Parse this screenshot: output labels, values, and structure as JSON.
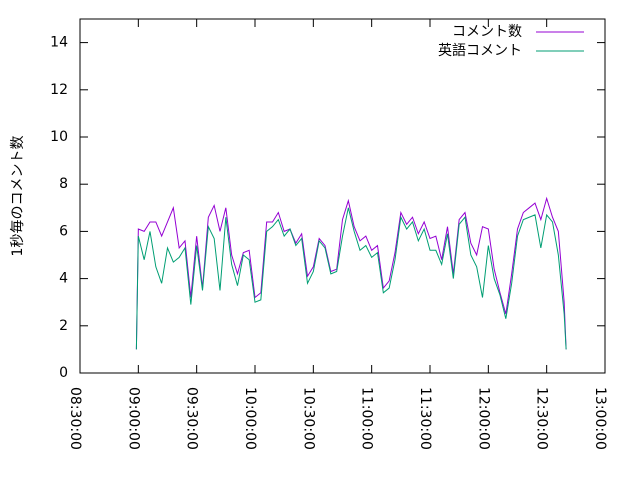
{
  "chart_data": {
    "type": "line",
    "ylabel": "1秒毎のコメント数",
    "xlim": [
      "08:30:00",
      "13:00:00"
    ],
    "xticks": [
      "08:30:00",
      "09:00:00",
      "09:30:00",
      "10:00:00",
      "10:30:00",
      "11:00:00",
      "11:30:00",
      "12:00:00",
      "12:30:00",
      "13:00:00"
    ],
    "ylim": [
      0,
      15
    ],
    "yticks": [
      0,
      2,
      4,
      6,
      8,
      10,
      12,
      14
    ],
    "legend": "top-right",
    "x": [
      "08:59:00",
      "09:00:00",
      "09:03:00",
      "09:06:00",
      "09:09:00",
      "09:12:00",
      "09:15:00",
      "09:18:00",
      "09:21:00",
      "09:24:00",
      "09:27:00",
      "09:30:00",
      "09:33:00",
      "09:36:00",
      "09:39:00",
      "09:42:00",
      "09:45:00",
      "09:48:00",
      "09:51:00",
      "09:54:00",
      "09:57:00",
      "10:00:00",
      "10:03:00",
      "10:06:00",
      "10:09:00",
      "10:12:00",
      "10:15:00",
      "10:18:00",
      "10:21:00",
      "10:24:00",
      "10:27:00",
      "10:30:00",
      "10:33:00",
      "10:36:00",
      "10:39:00",
      "10:42:00",
      "10:45:00",
      "10:48:00",
      "10:51:00",
      "10:54:00",
      "10:57:00",
      "11:00:00",
      "11:03:00",
      "11:06:00",
      "11:09:00",
      "11:12:00",
      "11:15:00",
      "11:18:00",
      "11:21:00",
      "11:24:00",
      "11:27:00",
      "11:30:00",
      "11:33:00",
      "11:36:00",
      "11:39:00",
      "11:42:00",
      "11:45:00",
      "11:48:00",
      "11:51:00",
      "11:54:00",
      "11:57:00",
      "12:00:00",
      "12:03:00",
      "12:06:00",
      "12:09:00",
      "12:12:00",
      "12:15:00",
      "12:18:00",
      "12:21:00",
      "12:24:00",
      "12:27:00",
      "12:30:00",
      "12:33:00",
      "12:36:00",
      "12:39:00",
      "12:40:00"
    ],
    "series": [
      {
        "name": "コメント数",
        "color": "#9400d3",
        "values": [
          1,
          6.1,
          6.0,
          6.4,
          6.4,
          5.8,
          6.4,
          7.0,
          5.3,
          5.6,
          3.2,
          5.8,
          3.6,
          6.6,
          7.1,
          6.0,
          7.0,
          5.0,
          4.2,
          5.1,
          5.2,
          3.2,
          3.4,
          6.4,
          6.4,
          6.8,
          6.0,
          6.1,
          5.5,
          5.9,
          4.1,
          4.5,
          5.7,
          5.4,
          4.3,
          4.4,
          6.5,
          7.3,
          6.2,
          5.6,
          5.8,
          5.2,
          5.4,
          3.6,
          3.9,
          5.1,
          6.8,
          6.3,
          6.6,
          5.9,
          6.4,
          5.7,
          5.8,
          4.8,
          6.2,
          4.2,
          6.5,
          6.8,
          5.5,
          5.0,
          6.2,
          6.1,
          4.4,
          3.4,
          2.5,
          4.2,
          6.1,
          6.8,
          7.0,
          7.2,
          6.5,
          7.4,
          6.6,
          6.0,
          3.0,
          1
        ]
      },
      {
        "name": "英語コメント",
        "color": "#009e73",
        "values": [
          1,
          5.8,
          4.8,
          6.0,
          4.5,
          3.8,
          5.3,
          4.7,
          4.9,
          5.3,
          2.9,
          5.4,
          3.5,
          6.2,
          5.7,
          3.5,
          6.6,
          4.6,
          3.7,
          5.0,
          4.8,
          3.0,
          3.1,
          6.0,
          6.2,
          6.5,
          5.8,
          6.1,
          5.4,
          5.7,
          3.8,
          4.3,
          5.6,
          5.3,
          4.2,
          4.3,
          5.8,
          7.0,
          6.0,
          5.2,
          5.4,
          4.9,
          5.1,
          3.4,
          3.6,
          4.8,
          6.6,
          6.1,
          6.4,
          5.6,
          6.1,
          5.2,
          5.2,
          4.6,
          5.9,
          4.0,
          6.3,
          6.6,
          5.0,
          4.5,
          3.2,
          5.4,
          4.0,
          3.3,
          2.3,
          3.8,
          5.8,
          6.5,
          6.6,
          6.7,
          5.3,
          6.7,
          6.4,
          5.0,
          2.5,
          1
        ]
      }
    ]
  }
}
